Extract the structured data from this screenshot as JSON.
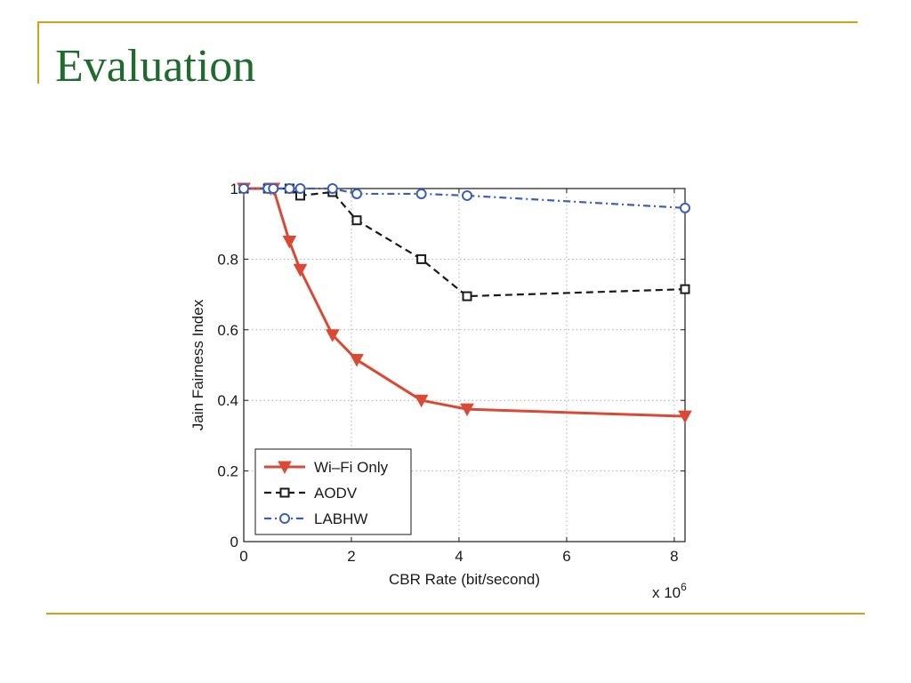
{
  "slide": {
    "title": "Evaluation",
    "title_color": "#1f6b2e",
    "rule_color": "#d4a017"
  },
  "chart_data": {
    "type": "line",
    "title": "",
    "xlabel": "CBR Rate (bit/second)",
    "ylabel": "Jain Fairness Index",
    "x_multiplier_label": "x 10",
    "x_multiplier_exp": "6",
    "xlim": [
      0,
      8.2
    ],
    "ylim": [
      0,
      1
    ],
    "xticks": [
      0,
      2,
      4,
      6,
      8
    ],
    "yticks": [
      0,
      0.2,
      0.4,
      0.6,
      0.8,
      1
    ],
    "ytick_labels": [
      "0",
      "0.2",
      "0.4",
      "0.6",
      "0.8",
      "1"
    ],
    "grid": true,
    "legend_position": "bottom-left",
    "series": [
      {
        "name": "Wi–Fi Only",
        "color": "#d94a35",
        "marker": "triangle-down",
        "line_style": "solid",
        "x": [
          0,
          0.5,
          0.55,
          0.85,
          1.05,
          1.65,
          2.1,
          3.3,
          4.15,
          8.2
        ],
        "y": [
          1.0,
          1.0,
          1.0,
          0.85,
          0.77,
          0.585,
          0.515,
          0.4,
          0.375,
          0.355
        ]
      },
      {
        "name": "AODV",
        "color": "#1a1a1a",
        "marker": "square",
        "line_style": "dashed",
        "x": [
          0,
          0.45,
          0.85,
          1.05,
          1.65,
          2.1,
          3.3,
          4.15,
          8.2
        ],
        "y": [
          1.0,
          1.0,
          1.0,
          0.98,
          0.99,
          0.91,
          0.8,
          0.695,
          0.715
        ]
      },
      {
        "name": "LABHW",
        "color": "#3a5fb5",
        "marker": "circle",
        "line_style": "dashdot",
        "x": [
          0,
          0.45,
          0.55,
          0.85,
          1.05,
          1.65,
          2.1,
          3.3,
          4.15,
          8.2
        ],
        "y": [
          1.0,
          1.0,
          1.0,
          1.0,
          1.0,
          1.0,
          0.985,
          0.985,
          0.98,
          0.945
        ]
      }
    ]
  }
}
